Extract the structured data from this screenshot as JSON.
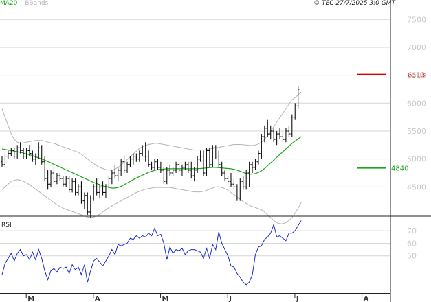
{
  "header": {
    "legend": [
      {
        "label": "MA20",
        "color": "#1aa51a"
      },
      {
        "label": "BBands",
        "color": "#b4b4b4"
      }
    ],
    "source": "© TEC 27/7/2025 3:0 GMT"
  },
  "chart_data": [
    {
      "type": "bar",
      "panel": "price",
      "title": "",
      "y_ticks": [
        "7500",
        "7000",
        "6500",
        "6000",
        "5500",
        "5000",
        "4500"
      ],
      "ylim": [
        4000,
        7700
      ],
      "x_tick_labels": [
        "M",
        "A",
        "M",
        "J",
        "J",
        "A"
      ],
      "x_tick_index": [
        5,
        27,
        49,
        71,
        93,
        115
      ],
      "levels": [
        {
          "label": "6513",
          "value": 6513,
          "color": "#dd0000"
        },
        {
          "label": "4840",
          "value": 4840,
          "color": "#1aa51a"
        }
      ],
      "ohlc": [
        [
          4950,
          5050,
          4850,
          4900
        ],
        [
          4900,
          5100,
          4850,
          5050
        ],
        [
          5050,
          5150,
          5000,
          5100
        ],
        [
          5100,
          5200,
          5050,
          5150
        ],
        [
          5150,
          5200,
          5000,
          5050
        ],
        [
          5050,
          5250,
          5000,
          5200
        ],
        [
          5200,
          5300,
          5100,
          5150
        ],
        [
          5150,
          5200,
          5000,
          5050
        ],
        [
          5050,
          5200,
          5000,
          5150
        ],
        [
          5150,
          5250,
          5050,
          5100
        ],
        [
          5100,
          5150,
          4950,
          5000
        ],
        [
          5000,
          5100,
          4900,
          5050
        ],
        [
          5050,
          5300,
          5000,
          5200
        ],
        [
          5200,
          5250,
          4900,
          4950
        ],
        [
          4950,
          5050,
          4600,
          4650
        ],
        [
          4650,
          4800,
          4450,
          4550
        ],
        [
          4550,
          4800,
          4500,
          4750
        ],
        [
          4750,
          4850,
          4550,
          4600
        ],
        [
          4600,
          4750,
          4550,
          4700
        ],
        [
          4700,
          4750,
          4600,
          4650
        ],
        [
          4650,
          4700,
          4500,
          4550
        ],
        [
          4550,
          4700,
          4500,
          4650
        ],
        [
          4650,
          4700,
          4400,
          4450
        ],
        [
          4450,
          4650,
          4400,
          4600
        ],
        [
          4600,
          4650,
          4350,
          4400
        ],
        [
          4400,
          4550,
          4350,
          4500
        ],
        [
          4500,
          4600,
          4200,
          4250
        ],
        [
          4250,
          4400,
          4100,
          4350
        ],
        [
          4350,
          4400,
          4000,
          4050
        ],
        [
          4050,
          4350,
          3950,
          4300
        ],
        [
          4300,
          4550,
          4250,
          4500
        ],
        [
          4500,
          4650,
          4350,
          4400
        ],
        [
          4400,
          4550,
          4300,
          4500
        ],
        [
          4500,
          4600,
          4350,
          4400
        ],
        [
          4400,
          4550,
          4300,
          4500
        ],
        [
          4500,
          4700,
          4450,
          4650
        ],
        [
          4650,
          4800,
          4550,
          4750
        ],
        [
          4750,
          4900,
          4650,
          4700
        ],
        [
          4700,
          4850,
          4600,
          4800
        ],
        [
          4800,
          5000,
          4700,
          4950
        ],
        [
          4950,
          5050,
          4750,
          4800
        ],
        [
          4800,
          4950,
          4750,
          4900
        ],
        [
          4900,
          5050,
          4850,
          5000
        ],
        [
          5000,
          5100,
          4900,
          5050
        ],
        [
          5050,
          5100,
          4950,
          5000
        ],
        [
          5000,
          5150,
          4950,
          5100
        ],
        [
          5100,
          5250,
          5050,
          5050
        ],
        [
          5050,
          5300,
          4950,
          5050
        ],
        [
          5050,
          5150,
          4850,
          4900
        ],
        [
          4900,
          4950,
          4800,
          4850
        ],
        [
          4850,
          5000,
          4800,
          4950
        ],
        [
          4950,
          5000,
          4800,
          4850
        ],
        [
          4850,
          4950,
          4750,
          4800
        ],
        [
          4800,
          4850,
          4550,
          4600
        ],
        [
          4600,
          4850,
          4550,
          4800
        ],
        [
          4800,
          4900,
          4700,
          4750
        ],
        [
          4750,
          4850,
          4700,
          4800
        ],
        [
          4800,
          4950,
          4750,
          4900
        ],
        [
          4900,
          4950,
          4750,
          4800
        ],
        [
          4800,
          4900,
          4700,
          4850
        ],
        [
          4850,
          4950,
          4800,
          4900
        ],
        [
          4900,
          4950,
          4750,
          4800
        ],
        [
          4800,
          4950,
          4650,
          4700
        ],
        [
          4700,
          4850,
          4600,
          4800
        ],
        [
          4800,
          5050,
          4750,
          5000
        ],
        [
          5000,
          5150,
          4950,
          5050
        ],
        [
          5050,
          5150,
          4700,
          4750
        ],
        [
          4750,
          5200,
          4700,
          5150
        ],
        [
          5150,
          5200,
          4850,
          4900
        ],
        [
          4900,
          5250,
          4850,
          5200
        ],
        [
          5200,
          5250,
          5000,
          5050
        ],
        [
          5050,
          5150,
          4850,
          4900
        ],
        [
          4900,
          4950,
          4700,
          4750
        ],
        [
          4750,
          4800,
          4600,
          4650
        ],
        [
          4650,
          4700,
          4550,
          4600
        ],
        [
          4600,
          4750,
          4500,
          4550
        ],
        [
          4550,
          4650,
          4450,
          4500
        ],
        [
          4500,
          4550,
          4250,
          4300
        ],
        [
          4300,
          4650,
          4250,
          4600
        ],
        [
          4600,
          4700,
          4450,
          4500
        ],
        [
          4500,
          4800,
          4450,
          4750
        ],
        [
          4750,
          4950,
          4500,
          4900
        ],
        [
          4900,
          4950,
          4750,
          4850
        ],
        [
          4850,
          5000,
          4800,
          4950
        ],
        [
          4950,
          5150,
          4900,
          5100
        ],
        [
          5100,
          5450,
          5000,
          5400
        ],
        [
          5400,
          5600,
          5300,
          5550
        ],
        [
          5550,
          5700,
          5400,
          5450
        ],
        [
          5450,
          5600,
          5350,
          5500
        ],
        [
          5500,
          5550,
          5300,
          5350
        ],
        [
          5350,
          5500,
          5250,
          5450
        ],
        [
          5450,
          5550,
          5350,
          5400
        ],
        [
          5400,
          5500,
          5300,
          5350
        ],
        [
          5350,
          5550,
          5300,
          5500
        ],
        [
          5500,
          5600,
          5400,
          5450
        ],
        [
          5450,
          5800,
          5400,
          5750
        ],
        [
          5750,
          6000,
          5700,
          5950
        ],
        [
          5950,
          6300,
          5900,
          6250
        ]
      ],
      "series": [
        {
          "name": "MA20",
          "color": "#1aa51a",
          "values": [
            5180,
            5170,
            5160,
            5150,
            5140,
            5130,
            5120,
            5105,
            5090,
            5075,
            5060,
            5040,
            5020,
            5000,
            4980,
            4955,
            4930,
            4905,
            4880,
            4855,
            4830,
            4805,
            4780,
            4755,
            4730,
            4705,
            4680,
            4655,
            4630,
            4605,
            4580,
            4560,
            4540,
            4520,
            4505,
            4490,
            4480,
            4480,
            4490,
            4510,
            4540,
            4570,
            4600,
            4630,
            4660,
            4685,
            4710,
            4735,
            4760,
            4780,
            4795,
            4810,
            4815,
            4820,
            4825,
            4825,
            4825,
            4825,
            4825,
            4825,
            4825,
            4825,
            4825,
            4825,
            4825,
            4830,
            4835,
            4840,
            4845,
            4850,
            4850,
            4845,
            4840,
            4835,
            4830,
            4825,
            4815,
            4800,
            4780,
            4760,
            4740,
            4730,
            4730,
            4740,
            4760,
            4790,
            4830,
            4880,
            4930,
            4980,
            5030,
            5080,
            5130,
            5180,
            5230,
            5280,
            5320,
            5360,
            5400
          ]
        },
        {
          "name": "BB upper",
          "color": "#b4b4b4",
          "values": [
            5900,
            5750,
            5600,
            5450,
            5350,
            5300,
            5280,
            5290,
            5300,
            5310,
            5320,
            5330,
            5330,
            5330,
            5320,
            5300,
            5290,
            5280,
            5260,
            5240,
            5220,
            5200,
            5180,
            5160,
            5140,
            5120,
            5080,
            5040,
            5000,
            4960,
            4920,
            4880,
            4850,
            4830,
            4810,
            4800,
            4800,
            4820,
            4850,
            4890,
            4940,
            4990,
            5040,
            5090,
            5140,
            5190,
            5220,
            5240,
            5260,
            5270,
            5280,
            5280,
            5270,
            5260,
            5250,
            5240,
            5230,
            5220,
            5210,
            5200,
            5190,
            5180,
            5170,
            5160,
            5160,
            5160,
            5160,
            5170,
            5180,
            5190,
            5200,
            5210,
            5220,
            5230,
            5240,
            5250,
            5260,
            5260,
            5260,
            5255,
            5250,
            5245,
            5240,
            5250,
            5270,
            5300,
            5350,
            5420,
            5500,
            5580,
            5660,
            5740,
            5820,
            5900,
            5980,
            6060,
            6100,
            6150,
            6200
          ]
        },
        {
          "name": "BB lower",
          "color": "#b4b4b4",
          "values": [
            4450,
            4500,
            4550,
            4600,
            4620,
            4630,
            4620,
            4600,
            4570,
            4540,
            4500,
            4460,
            4420,
            4380,
            4340,
            4300,
            4260,
            4220,
            4180,
            4150,
            4120,
            4100,
            4080,
            4060,
            4040,
            4020,
            4000,
            3980,
            3960,
            3950,
            3960,
            3980,
            4010,
            4050,
            4090,
            4130,
            4160,
            4190,
            4220,
            4250,
            4280,
            4310,
            4340,
            4370,
            4400,
            4420,
            4440,
            4460,
            4470,
            4480,
            4490,
            4490,
            4490,
            4490,
            4490,
            4490,
            4480,
            4470,
            4460,
            4450,
            4440,
            4430,
            4420,
            4410,
            4410,
            4410,
            4420,
            4440,
            4460,
            4480,
            4500,
            4500,
            4490,
            4470,
            4440,
            4400,
            4360,
            4320,
            4280,
            4240,
            4200,
            4170,
            4150,
            4130,
            4110,
            4090,
            4050,
            4000,
            3950,
            3900,
            3860,
            3840,
            3840,
            3860,
            3900,
            3950,
            4030,
            4120,
            4220
          ]
        }
      ]
    },
    {
      "type": "line",
      "panel": "rsi",
      "title": "RSI",
      "y_ticks": [
        "70",
        "60",
        "50"
      ],
      "ylim": [
        22,
        81
      ],
      "series": [
        {
          "name": "RSI",
          "color": "#1a2bcc",
          "values": [
            35,
            44,
            48,
            52,
            46,
            52,
            55,
            50,
            51,
            47,
            53,
            47,
            55,
            48,
            38,
            31,
            38,
            40,
            37,
            41,
            40,
            41,
            36,
            43,
            39,
            41,
            35,
            43,
            29,
            38,
            46,
            48,
            45,
            42,
            46,
            50,
            55,
            51,
            59,
            58,
            59,
            60,
            64,
            63,
            66,
            64,
            66,
            65,
            68,
            66,
            72,
            66,
            67,
            60,
            47,
            57,
            52,
            55,
            54,
            56,
            51,
            54,
            55,
            55,
            54,
            53,
            48,
            56,
            48,
            59,
            55,
            69,
            60,
            55,
            50,
            42,
            41,
            36,
            33,
            29,
            27,
            29,
            35,
            51,
            57,
            58,
            63,
            65,
            68,
            75,
            65,
            66,
            64,
            62,
            68,
            68,
            70,
            74,
            78
          ]
        }
      ]
    }
  ]
}
